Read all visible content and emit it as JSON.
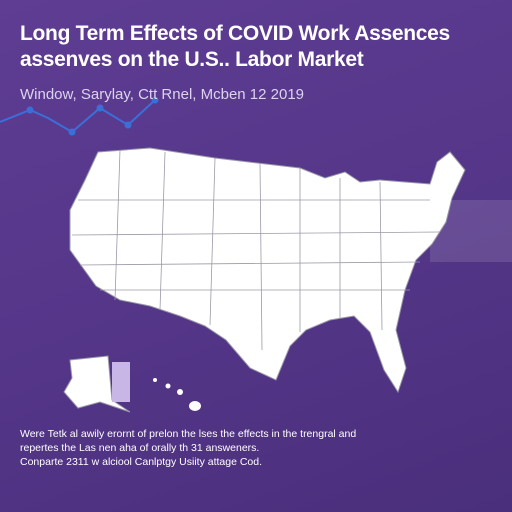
{
  "header": {
    "title_lines": [
      "Long Term Effects of COVID Work Assences",
      "assenves on the U.S.. Labor Market"
    ],
    "subtitle": "Window, Sarylay, Ctt Rnel, Mcben 12 2019"
  },
  "footer": {
    "lines": [
      "Were Tetk al awily erornt of prelon the lses the effects in the trengral and",
      "repertes the Las nen aha of orally th 31 answeners."
    ],
    "credit": "Conparte 2311 w alciool Canlptgy Usiity attage Cod."
  }
}
